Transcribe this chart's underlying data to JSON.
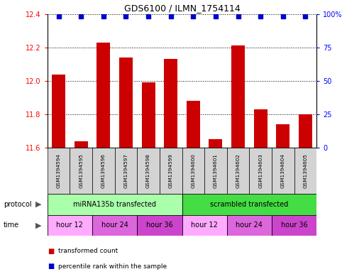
{
  "title": "GDS6100 / ILMN_1754114",
  "samples": [
    "GSM1394594",
    "GSM1394595",
    "GSM1394596",
    "GSM1394597",
    "GSM1394598",
    "GSM1394599",
    "GSM1394600",
    "GSM1394601",
    "GSM1394602",
    "GSM1394603",
    "GSM1394604",
    "GSM1394605"
  ],
  "bar_values": [
    12.04,
    11.64,
    12.23,
    12.14,
    11.99,
    12.13,
    11.88,
    11.65,
    12.21,
    11.83,
    11.74,
    11.8
  ],
  "percentile_values": [
    100,
    100,
    100,
    100,
    100,
    100,
    100,
    100,
    100,
    100,
    100,
    100
  ],
  "bar_color": "#cc0000",
  "percentile_color": "#0000cc",
  "ylim_left": [
    11.6,
    12.4
  ],
  "ylim_right": [
    0,
    100
  ],
  "yticks_left": [
    11.6,
    11.8,
    12.0,
    12.2,
    12.4
  ],
  "yticks_right": [
    0,
    25,
    50,
    75,
    100
  ],
  "ytick_labels_right": [
    "0",
    "25",
    "50",
    "75",
    "100%"
  ],
  "protocol_groups": [
    {
      "label": "miRNA135b transfected",
      "start": 0,
      "end": 6,
      "color": "#aaffaa"
    },
    {
      "label": "scrambled transfected",
      "start": 6,
      "end": 12,
      "color": "#44dd44"
    }
  ],
  "time_groups": [
    {
      "label": "hour 12",
      "start": 0,
      "end": 2,
      "color": "#ffaaff"
    },
    {
      "label": "hour 24",
      "start": 2,
      "end": 4,
      "color": "#dd66dd"
    },
    {
      "label": "hour 36",
      "start": 4,
      "end": 6,
      "color": "#cc44cc"
    },
    {
      "label": "hour 12",
      "start": 6,
      "end": 8,
      "color": "#ffaaff"
    },
    {
      "label": "hour 24",
      "start": 8,
      "end": 10,
      "color": "#dd66dd"
    },
    {
      "label": "hour 36",
      "start": 10,
      "end": 12,
      "color": "#cc44cc"
    }
  ],
  "legend_items": [
    {
      "label": "transformed count",
      "color": "#cc0000"
    },
    {
      "label": "percentile rank within the sample",
      "color": "#0000cc"
    }
  ],
  "protocol_label": "protocol",
  "time_label": "time",
  "bg_color": "#ffffff",
  "sample_box_color": "#d3d3d3"
}
